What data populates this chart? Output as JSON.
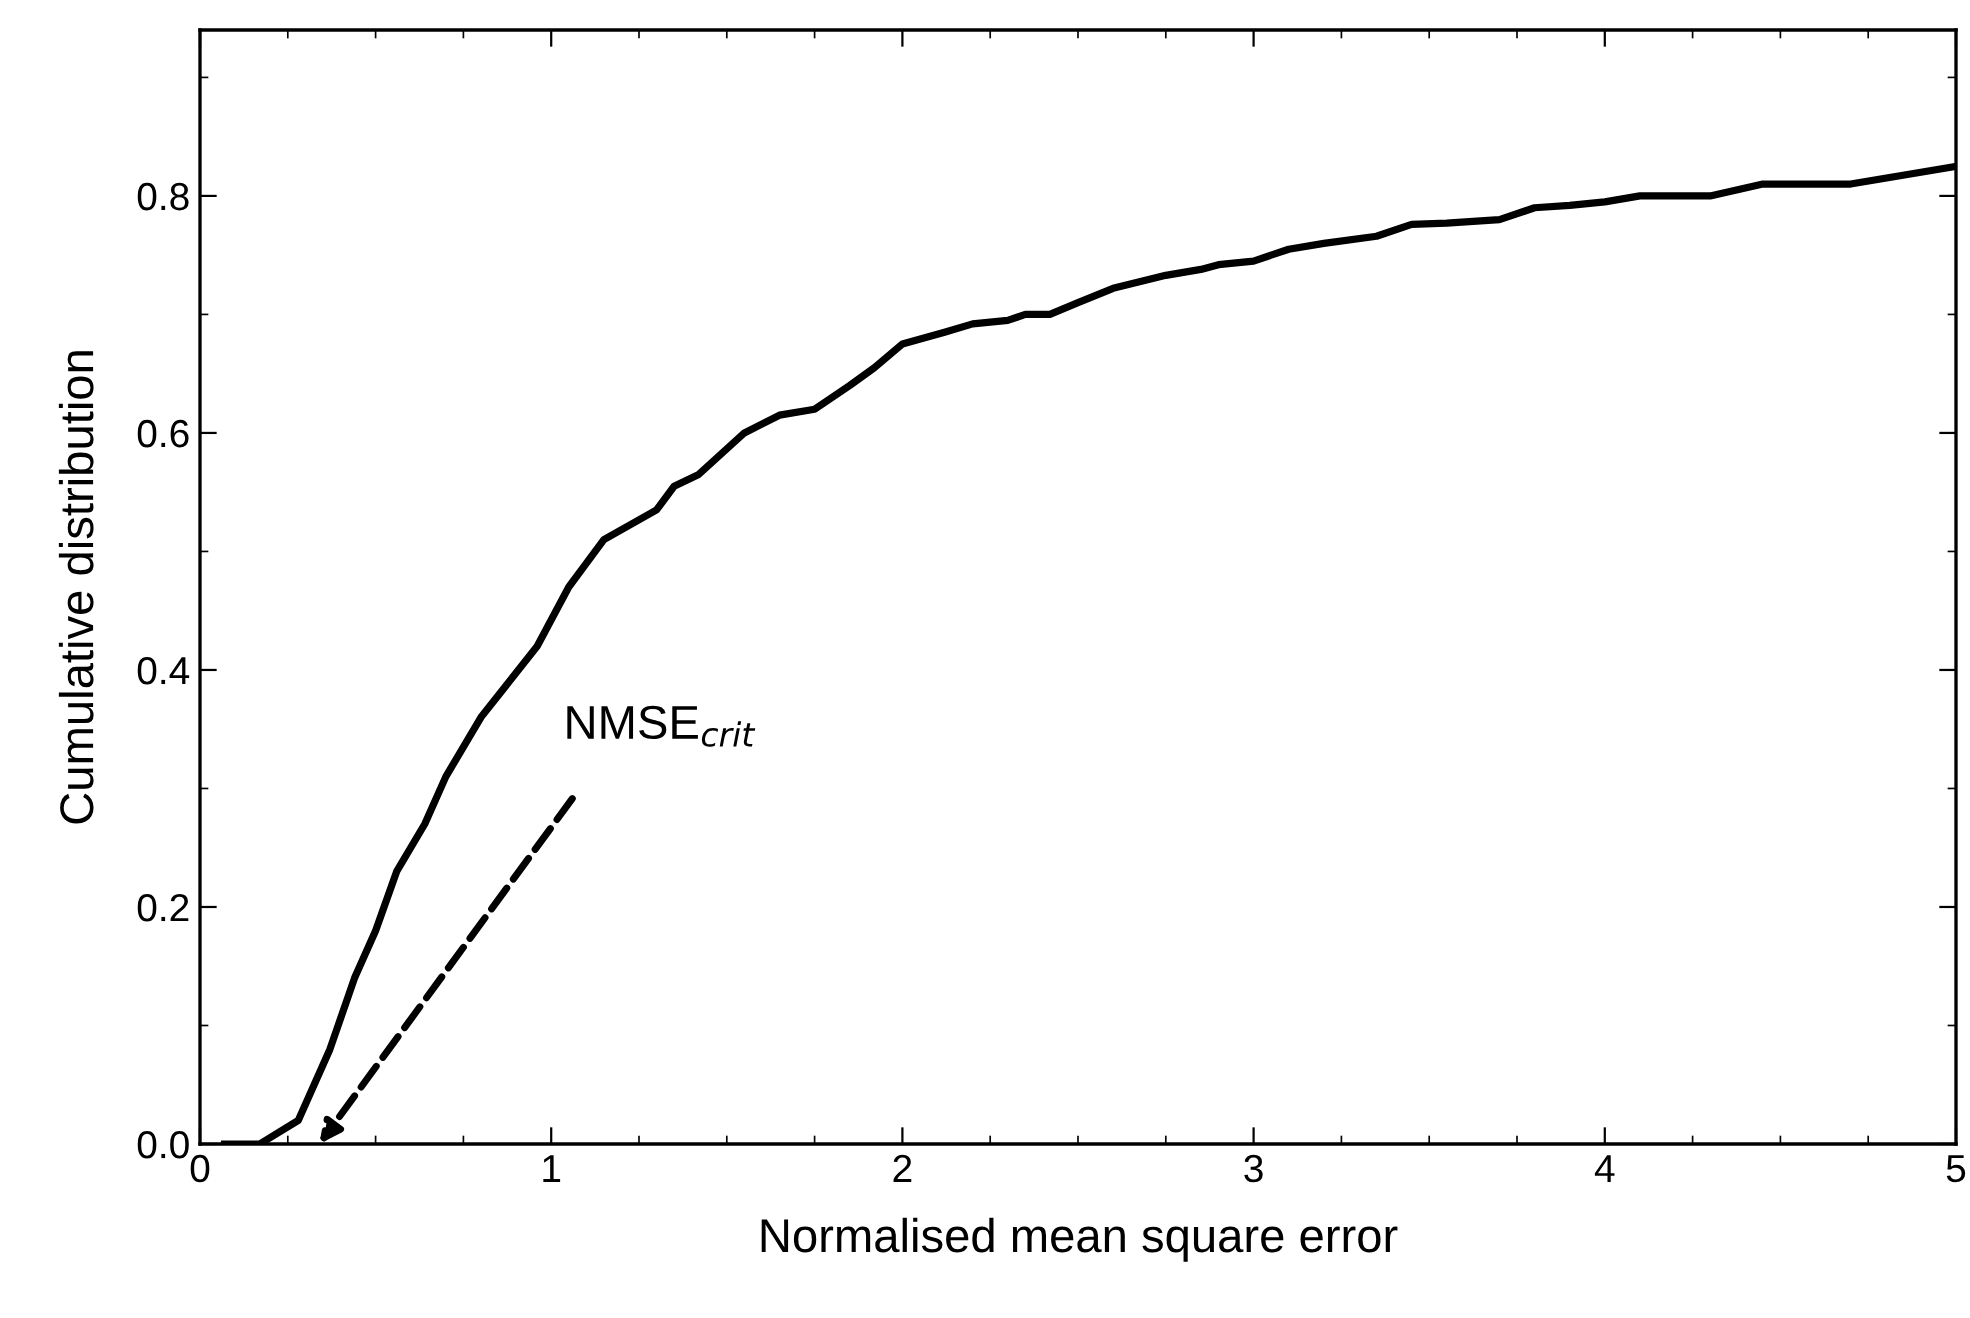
{
  "chart_data": {
    "type": "line",
    "xlabel": "Normalised mean square error",
    "ylabel": "Cumulative distribution",
    "x": [
      0.07,
      0.17,
      0.28,
      0.37,
      0.44,
      0.5,
      0.56,
      0.64,
      0.7,
      0.8,
      0.88,
      0.96,
      1.05,
      1.15,
      1.3,
      1.35,
      1.42,
      1.55,
      1.65,
      1.75,
      1.85,
      1.92,
      2.0,
      2.12,
      2.2,
      2.3,
      2.35,
      2.42,
      2.5,
      2.6,
      2.75,
      2.85,
      2.9,
      3.0,
      3.1,
      3.2,
      3.35,
      3.45,
      3.55,
      3.7,
      3.8,
      3.9,
      4.0,
      4.1,
      4.3,
      4.45,
      4.7,
      4.9,
      5.0
    ],
    "series": [
      {
        "color": "#000000",
        "values": [
          0,
          0,
          0.02,
          0.08,
          0.14,
          0.18,
          0.23,
          0.27,
          0.31,
          0.36,
          0.39,
          0.42,
          0.47,
          0.51,
          0.535,
          0.555,
          0.565,
          0.6,
          0.615,
          0.62,
          0.64,
          0.655,
          0.675,
          0.685,
          0.692,
          0.695,
          0.7,
          0.7,
          0.71,
          0.722,
          0.733,
          0.738,
          0.742,
          0.745,
          0.755,
          0.76,
          0.766,
          0.776,
          0.777,
          0.78,
          0.79,
          0.792,
          0.795,
          0.8,
          0.8,
          0.81,
          0.81,
          0.82,
          0.825
        ]
      }
    ],
    "xlim": [
      0,
      5
    ],
    "ylim": [
      0,
      0.94
    ],
    "xticks": [
      0,
      1,
      2,
      3,
      4,
      5
    ],
    "yticks": [
      {
        "value": 0,
        "label": "0.0"
      },
      {
        "value": 0.2,
        "label": "0.2"
      },
      {
        "value": 0.4,
        "label": "0.4"
      },
      {
        "value": 0.6,
        "label": "0.6"
      },
      {
        "value": 0.8,
        "label": "0.8"
      }
    ],
    "grid": false,
    "marker": "none",
    "line_style": "solid",
    "annotations": [
      "NMSE$_{crit}$"
    ]
  }
}
